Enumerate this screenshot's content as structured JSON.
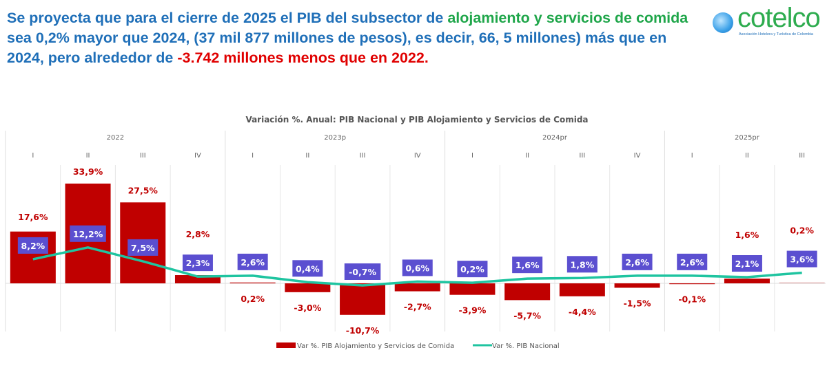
{
  "headline": {
    "part1": "Se proyecta que para el cierre de 2025 el PIB del subsector de ",
    "part2": "alojamiento y servicios de comida",
    "part3": " sea 0,2% mayor que 2024, (37 mil 877 millones de pesos), es decir, 66, 5 millones) más que en 2024, pero alrededor de ",
    "part4": "-3.742 millones menos que en 2022."
  },
  "logo": {
    "word": "cotelco",
    "subtitle": "Asociación Hotelera y Turística de Colombia"
  },
  "colors": {
    "bar": "#c00000",
    "line": "#1fc4a0",
    "label_box": "#5b4fd0",
    "blue_text": "#1f6fb8",
    "green_text": "#1fa64a",
    "red_text": "#e00000"
  },
  "chart_data": {
    "type": "bar+line",
    "title": "Variación %. Anual: PIB Nacional y PIB Alojamiento y Servicios de Comida",
    "years": [
      {
        "label": "2022",
        "quarters": 4
      },
      {
        "label": "2023p",
        "quarters": 4
      },
      {
        "label": "2024pr",
        "quarters": 4
      },
      {
        "label": "2025pr",
        "quarters": 3
      }
    ],
    "categories": [
      "I",
      "II",
      "III",
      "IV",
      "I",
      "II",
      "III",
      "IV",
      "I",
      "II",
      "III",
      "IV",
      "I",
      "II",
      "III"
    ],
    "series": [
      {
        "name": "Var %. PIB Alojamiento y Servicios de Comida",
        "type": "bar",
        "values": [
          17.6,
          33.9,
          27.5,
          2.8,
          0.2,
          -3.0,
          -10.7,
          -2.7,
          -3.9,
          -5.7,
          -4.4,
          -1.5,
          -0.1,
          1.6,
          0.2
        ],
        "labels": [
          "17,6%",
          "33,9%",
          "27,5%",
          "2,8%",
          "0,2%",
          "-3,0%",
          "-10,7%",
          "-2,7%",
          "-3,9%",
          "-5,7%",
          "-4,4%",
          "-1,5%",
          "-0,1%",
          "1,6%",
          "0,2%"
        ]
      },
      {
        "name": "Var %. PIB Nacional",
        "type": "line",
        "values": [
          8.2,
          12.2,
          7.5,
          2.3,
          2.6,
          0.4,
          -0.7,
          0.6,
          0.2,
          1.6,
          1.8,
          2.6,
          2.6,
          2.1,
          3.6
        ],
        "labels": [
          "8,2%",
          "12,2%",
          "7,5%",
          "2,3%",
          "2,6%",
          "0,4%",
          "-0,7%",
          "0,6%",
          "0,2%",
          "1,6%",
          "1,8%",
          "2,6%",
          "2,6%",
          "2,1%",
          "3,6%"
        ]
      }
    ],
    "legend_position": "bottom",
    "grid": "vertical category separators"
  }
}
